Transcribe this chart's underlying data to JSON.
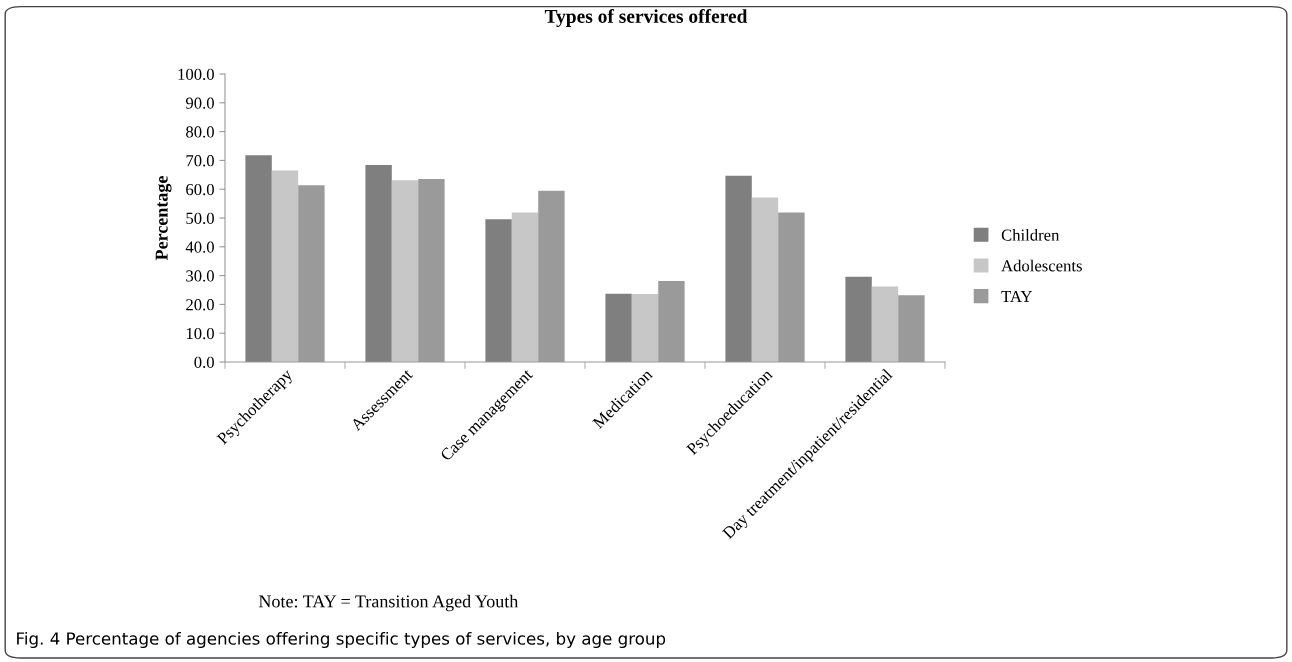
{
  "chart_data": {
    "type": "bar",
    "title": "Types of services offered",
    "ylabel": "Percentage",
    "categories": [
      "Psychotherapy",
      "Assessment",
      "Case management",
      "Medication",
      "Psychoeducation",
      "Day treatment/inpatient/residential"
    ],
    "series": [
      {
        "name": "Children",
        "color": "#7f7f7f",
        "values": [
          71.8,
          68.4,
          49.6,
          23.7,
          64.7,
          29.6
        ]
      },
      {
        "name": "Adolescents",
        "color": "#c6c7c6",
        "values": [
          66.5,
          63.1,
          51.9,
          23.6,
          57.1,
          26.2
        ]
      },
      {
        "name": "TAY",
        "color": "#999a99",
        "values": [
          61.4,
          63.5,
          59.5,
          28.1,
          51.9,
          23.2
        ]
      }
    ],
    "ylim": [
      0,
      100
    ],
    "yticks": [
      {
        "value": 0,
        "label": "0.0"
      },
      {
        "value": 10,
        "label": "10.0"
      },
      {
        "value": 20,
        "label": "20.0"
      },
      {
        "value": 30,
        "label": "30.0"
      },
      {
        "value": 40,
        "label": "40.0"
      },
      {
        "value": 50,
        "label": "50.0"
      },
      {
        "value": 60,
        "label": "60.0"
      },
      {
        "value": 70,
        "label": "70.0"
      },
      {
        "value": 80,
        "label": "80.0"
      },
      {
        "value": 90,
        "label": "90.0"
      },
      {
        "value": 100,
        "label": "100.0"
      }
    ],
    "grid": false,
    "legend": "right",
    "annotations": [
      "Note: TAY = Transition Aged Youth",
      "Fig. 4 Percentage of agencies offering specific types of services, by age group"
    ]
  }
}
